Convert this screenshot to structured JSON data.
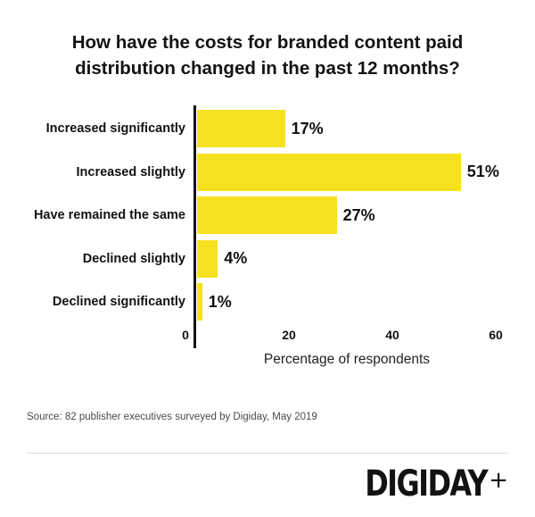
{
  "title": {
    "line1": "How have the costs for branded content paid",
    "line2": "distribution changed in the past 12 months?"
  },
  "chart_data": {
    "type": "bar",
    "orientation": "horizontal",
    "categories": [
      "Increased significantly",
      "Increased slightly",
      "Have remained the same",
      "Declined slightly",
      "Declined significantly"
    ],
    "values": [
      17,
      51,
      27,
      4,
      1
    ],
    "value_labels": [
      "17%",
      "51%",
      "27%",
      "4%",
      "1%"
    ],
    "xlabel": "Percentage of respondents",
    "xticks": [
      0,
      20,
      40,
      60
    ],
    "xlim": [
      0,
      60
    ],
    "bar_color": "#F6E120",
    "axis_color": "#111111",
    "grid": false,
    "legend": null
  },
  "source_note": "Source: 82 publisher executives surveyed by Digiday, May 2019",
  "branding": {
    "logo_text": "DIGIDAY",
    "logo_plus": "+",
    "logo_color": "#121212"
  }
}
